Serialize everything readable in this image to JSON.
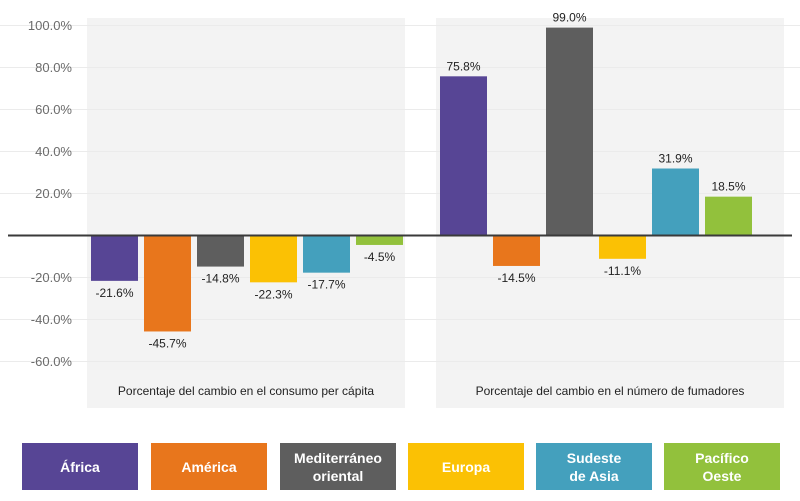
{
  "chart_data": {
    "type": "bar",
    "title": "",
    "xlabel": "",
    "ylabel": "",
    "ylim": [
      -70,
      112
    ],
    "y_ticks": [
      {
        "value": 100,
        "label": "100.0%"
      },
      {
        "value": 80,
        "label": "80.0%"
      },
      {
        "value": 60,
        "label": "60.0%"
      },
      {
        "value": 40,
        "label": "40.0%"
      },
      {
        "value": 20,
        "label": "20.0%"
      },
      {
        "value": -20,
        "label": "-20.0%"
      },
      {
        "value": -40,
        "label": "-40.0%"
      },
      {
        "value": -60,
        "label": "-60.0%"
      }
    ],
    "categories": [
      "Porcentaje del cambio en el consumo per cápita",
      "Porcentaje del cambio en el número de fumadores"
    ],
    "series": [
      {
        "name": "África",
        "color": "#574595",
        "values": [
          -21.6,
          75.8
        ],
        "labels": [
          "-21.6%",
          "75.8%"
        ]
      },
      {
        "name": "América",
        "color": "#e8761c",
        "values": [
          -45.7,
          -14.5
        ],
        "labels": [
          "-45.7%",
          "-14.5%"
        ]
      },
      {
        "name": "Mediterráneo\noriental",
        "color": "#5e5e5e",
        "values": [
          -14.8,
          99.0
        ],
        "labels": [
          "-14.8%",
          "99.0%"
        ]
      },
      {
        "name": "Europa",
        "color": "#fbc104",
        "values": [
          -22.3,
          -11.1
        ],
        "labels": [
          "-22.3%",
          "-11.1%"
        ]
      },
      {
        "name": "Sudeste\nde Asia",
        "color": "#44a0bd",
        "values": [
          -17.7,
          31.9
        ],
        "labels": [
          "-17.7%",
          "31.9%"
        ]
      },
      {
        "name": "Pacífico\nOeste",
        "color": "#92c13c",
        "values": [
          -4.5,
          18.5
        ],
        "labels": [
          "-4.5%",
          "18.5%"
        ]
      }
    ],
    "grid": true,
    "legend_position": "bottom"
  }
}
